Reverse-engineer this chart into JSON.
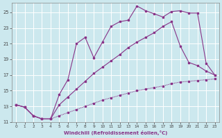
{
  "xlabel": "Windchill (Refroidissement éolien,°C)",
  "bg_color": "#cce8ee",
  "grid_color": "#ffffff",
  "line_color": "#883388",
  "xlim": [
    -0.5,
    23.5
  ],
  "ylim": [
    11,
    26.2
  ],
  "xticks": [
    0,
    1,
    2,
    3,
    4,
    5,
    6,
    7,
    8,
    9,
    10,
    11,
    12,
    13,
    14,
    15,
    16,
    17,
    18,
    19,
    20,
    21,
    22,
    23
  ],
  "yticks": [
    11,
    13,
    15,
    17,
    19,
    21,
    23,
    25
  ],
  "curve1_x": [
    0,
    1,
    2,
    3,
    4,
    5,
    6,
    7,
    8,
    9,
    10,
    11,
    12,
    13,
    14,
    15,
    16,
    17,
    18,
    19,
    20,
    21,
    22,
    23
  ],
  "curve1_y": [
    13.2,
    12.9,
    11.8,
    11.4,
    11.4,
    14.5,
    16.4,
    21.0,
    21.8,
    19.2,
    21.2,
    23.2,
    23.8,
    24.0,
    25.8,
    25.2,
    24.8,
    24.4,
    25.1,
    25.2,
    24.9,
    24.9,
    18.5,
    17.0
  ],
  "curve2_x": [
    0,
    1,
    2,
    3,
    4,
    5,
    6,
    7,
    8,
    9,
    10,
    11,
    12,
    13,
    14,
    15,
    16,
    17,
    18,
    19,
    20,
    21,
    22,
    23
  ],
  "curve2_y": [
    13.2,
    12.9,
    11.8,
    11.4,
    11.4,
    13.2,
    14.2,
    15.2,
    16.2,
    17.2,
    18.0,
    18.8,
    19.6,
    20.5,
    21.2,
    21.8,
    22.4,
    23.2,
    23.8,
    20.7,
    18.6,
    18.2,
    17.5,
    17.0
  ],
  "curve3_x": [
    0,
    1,
    2,
    3,
    4,
    5,
    6,
    7,
    8,
    9,
    10,
    11,
    12,
    13,
    14,
    15,
    16,
    17,
    18,
    19,
    20,
    21,
    22,
    23
  ],
  "curve3_y": [
    13.2,
    12.9,
    11.8,
    11.4,
    11.4,
    11.8,
    12.2,
    12.6,
    13.0,
    13.4,
    13.8,
    14.1,
    14.4,
    14.7,
    15.0,
    15.2,
    15.4,
    15.6,
    15.9,
    16.1,
    16.2,
    16.3,
    16.4,
    16.5
  ]
}
